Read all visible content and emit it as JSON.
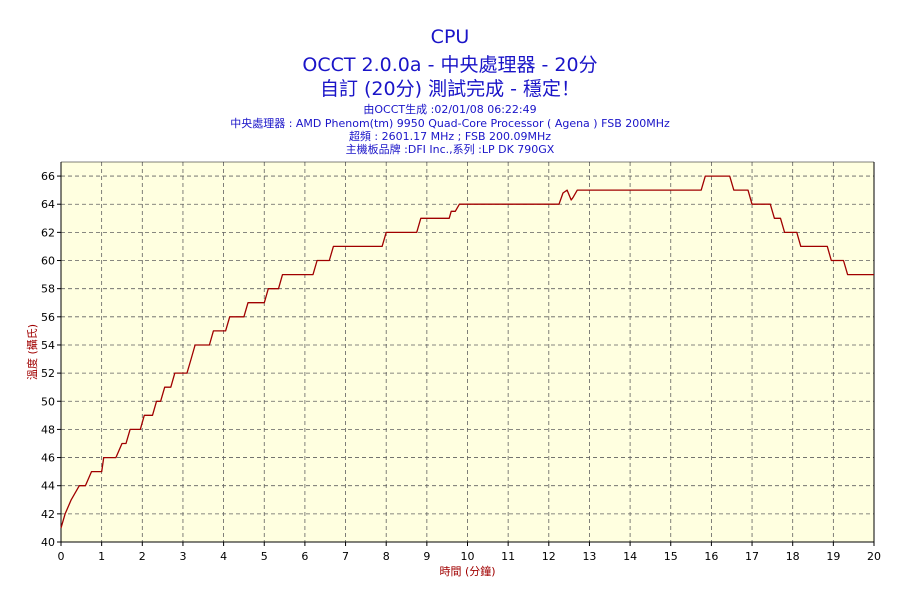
{
  "header": {
    "title": "CPU",
    "subtitle1": "OCCT 2.0.0a - 中央處理器 - 20分",
    "subtitle2": "自訂 (20分) 測試完成 - 穩定！",
    "info": [
      "由OCCT生成 :02/01/08 06:22:49",
      "中央處理器 : AMD Phenom(tm) 9950 Quad-Core Processor ( Agena ) FSB 200MHz",
      "超頻 : 2601.17 MHz ; FSB 200.09MHz",
      "主機板品牌 :DFI Inc.,系列 :LP DK 790GX"
    ]
  },
  "colors": {
    "plot_background": "#ffffe0",
    "line": "#a00000",
    "grid": "#606060",
    "title": "#1a14c8",
    "axis_label": "#a00000"
  },
  "chart_data": {
    "type": "line",
    "xlabel": "時間 (分鐘)",
    "ylabel": "溫度 (攝氏)",
    "xlim": [
      0,
      20
    ],
    "ylim": [
      40,
      67
    ],
    "xticks": [
      0,
      1,
      2,
      3,
      4,
      5,
      6,
      7,
      8,
      9,
      10,
      11,
      12,
      13,
      14,
      15,
      16,
      17,
      18,
      19,
      20
    ],
    "yticks": [
      40,
      42,
      44,
      46,
      48,
      50,
      52,
      54,
      56,
      58,
      60,
      62,
      64,
      66
    ],
    "grid": true,
    "series": [
      {
        "values": [
          [
            0,
            41
          ],
          [
            0.1,
            42
          ],
          [
            0.25,
            43
          ],
          [
            0.45,
            44
          ],
          [
            0.6,
            44
          ],
          [
            0.75,
            45
          ],
          [
            1.0,
            45
          ],
          [
            1.05,
            46
          ],
          [
            1.35,
            46
          ],
          [
            1.5,
            47
          ],
          [
            1.6,
            47
          ],
          [
            1.7,
            48
          ],
          [
            1.95,
            48
          ],
          [
            2.05,
            49
          ],
          [
            2.25,
            49
          ],
          [
            2.35,
            50
          ],
          [
            2.45,
            50
          ],
          [
            2.55,
            51
          ],
          [
            2.7,
            51
          ],
          [
            2.8,
            52
          ],
          [
            3.1,
            52
          ],
          [
            3.2,
            53
          ],
          [
            3.3,
            54
          ],
          [
            3.65,
            54
          ],
          [
            3.75,
            55
          ],
          [
            4.05,
            55
          ],
          [
            4.15,
            56
          ],
          [
            4.5,
            56
          ],
          [
            4.6,
            57
          ],
          [
            5.0,
            57
          ],
          [
            5.1,
            58
          ],
          [
            5.35,
            58
          ],
          [
            5.45,
            59
          ],
          [
            6.2,
            59
          ],
          [
            6.3,
            60
          ],
          [
            6.6,
            60
          ],
          [
            6.7,
            61
          ],
          [
            7.9,
            61
          ],
          [
            8.0,
            62
          ],
          [
            8.75,
            62
          ],
          [
            8.85,
            63
          ],
          [
            9.55,
            63
          ],
          [
            9.6,
            63.5
          ],
          [
            9.7,
            63.5
          ],
          [
            9.8,
            64
          ],
          [
            12.25,
            64
          ],
          [
            12.35,
            64.8
          ],
          [
            12.45,
            65
          ],
          [
            12.55,
            64.3
          ],
          [
            12.6,
            64.5
          ],
          [
            12.7,
            65
          ],
          [
            15.75,
            65
          ],
          [
            15.85,
            66
          ],
          [
            16.45,
            66
          ],
          [
            16.55,
            65
          ],
          [
            16.9,
            65
          ],
          [
            17.0,
            64
          ],
          [
            17.45,
            64
          ],
          [
            17.55,
            63
          ],
          [
            17.7,
            63
          ],
          [
            17.8,
            62
          ],
          [
            18.1,
            62
          ],
          [
            18.2,
            61
          ],
          [
            18.85,
            61
          ],
          [
            18.95,
            60
          ],
          [
            19.25,
            60
          ],
          [
            19.35,
            59
          ],
          [
            20,
            59
          ]
        ]
      }
    ]
  }
}
